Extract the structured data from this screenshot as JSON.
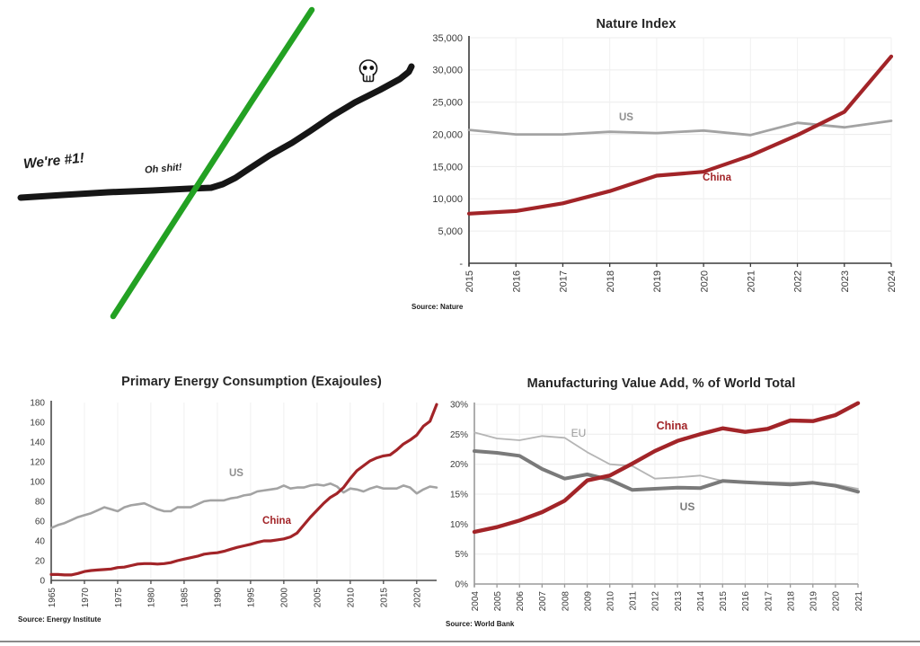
{
  "chart_data": [
    {
      "id": "cartoon",
      "type": "line",
      "style": "hand-drawn cartoon, no axes",
      "annotations": [
        {
          "text": "We're #1!"
        },
        {
          "text": "Oh shit!"
        }
      ],
      "skull_icon": {
        "x": 410,
        "y": 78
      },
      "series": [
        {
          "name": "incumbent-black",
          "color": "#161616",
          "width": 7,
          "points": [
            [
              23,
              220
            ],
            [
              70,
              217
            ],
            [
              120,
              214
            ],
            [
              170,
              212
            ],
            [
              210,
              210
            ],
            [
              235,
              209
            ],
            [
              248,
              205
            ],
            [
              262,
              198
            ],
            [
              277,
              188
            ],
            [
              300,
              173
            ],
            [
              325,
              159
            ],
            [
              345,
              146
            ],
            [
              370,
              129
            ],
            [
              395,
              114
            ],
            [
              423,
              100
            ],
            [
              445,
              88
            ],
            [
              455,
              80
            ],
            [
              458,
              74
            ]
          ]
        },
        {
          "name": "challenger-green",
          "color": "#23a123",
          "width": 6.5,
          "points": [
            [
              126,
              352
            ],
            [
              200,
              237
            ],
            [
              280,
              113
            ],
            [
              347,
              11
            ]
          ]
        }
      ]
    },
    {
      "id": "nature-index",
      "type": "line",
      "title": "Nature Index",
      "source": "Source: Nature",
      "x": [
        2015,
        2016,
        2017,
        2018,
        2019,
        2020,
        2021,
        2022,
        2023,
        2024
      ],
      "xticks": [
        2015,
        2016,
        2017,
        2018,
        2019,
        2020,
        2021,
        2022,
        2023,
        2024
      ],
      "xlim": [
        2015,
        2024
      ],
      "ylim": [
        0,
        35000
      ],
      "ytick_values": [
        0,
        5000,
        10000,
        15000,
        20000,
        25000,
        30000,
        35000
      ],
      "ytick_labels": [
        "-",
        "5,000",
        "10,000",
        "15,000",
        "20,000",
        "25,000",
        "30,000",
        "35,000"
      ],
      "grid": true,
      "legend_position": "inline-labels",
      "series": [
        {
          "name": "US",
          "color": "#a3a3a3",
          "width": 2.8,
          "values": [
            20700,
            20000,
            20000,
            20400,
            20200,
            20600,
            19900,
            21800,
            21100,
            22100
          ]
        },
        {
          "name": "China",
          "color": "#a22428",
          "width": 4.2,
          "values": [
            7700,
            8100,
            9300,
            11200,
            13600,
            14200,
            16700,
            19900,
            23500,
            32100
          ]
        }
      ]
    },
    {
      "id": "energy",
      "type": "line",
      "title": "Primary Energy Consumption (Exajoules)",
      "source": "Source: Energy Institute",
      "x": [
        1965,
        1966,
        1967,
        1968,
        1969,
        1970,
        1971,
        1972,
        1973,
        1974,
        1975,
        1976,
        1977,
        1978,
        1979,
        1980,
        1981,
        1982,
        1983,
        1984,
        1985,
        1986,
        1987,
        1988,
        1989,
        1990,
        1991,
        1992,
        1993,
        1994,
        1995,
        1996,
        1997,
        1998,
        1999,
        2000,
        2001,
        2002,
        2003,
        2004,
        2005,
        2006,
        2007,
        2008,
        2009,
        2010,
        2011,
        2012,
        2013,
        2014,
        2015,
        2016,
        2017,
        2018,
        2019,
        2020,
        2021,
        2022,
        2023
      ],
      "xticks": [
        1965,
        1970,
        1975,
        1980,
        1985,
        1990,
        1995,
        2000,
        2005,
        2010,
        2015,
        2020
      ],
      "xlim": [
        1965,
        2023
      ],
      "ylim": [
        0,
        180
      ],
      "ytick_values": [
        0,
        20,
        40,
        60,
        80,
        100,
        120,
        140,
        160,
        180
      ],
      "ytick_labels": [
        "0",
        "20",
        "40",
        "60",
        "80",
        "100",
        "120",
        "140",
        "160",
        "180"
      ],
      "grid": true,
      "legend_position": "inline-labels",
      "series": [
        {
          "name": "US",
          "color": "#a3a3a3",
          "width": 2.6,
          "values": [
            53,
            56,
            58,
            61,
            64,
            66,
            68,
            71,
            74,
            72,
            70,
            74,
            76,
            77,
            78,
            75,
            72,
            70,
            70,
            74,
            74,
            74,
            77,
            80,
            81,
            81,
            81,
            83,
            84,
            86,
            87,
            90,
            91,
            92,
            93,
            96,
            93,
            94,
            94,
            96,
            97,
            96,
            98,
            95,
            89,
            93,
            92,
            90,
            93,
            95,
            93,
            93,
            93,
            96,
            94,
            88,
            92,
            95,
            94
          ]
        },
        {
          "name": "China",
          "color": "#a22428",
          "width": 3.2,
          "values": [
            6,
            6,
            5.5,
            5.5,
            7,
            9,
            10,
            10.5,
            11,
            11.5,
            13,
            13.5,
            15,
            16.5,
            17,
            17,
            16.5,
            17,
            18,
            20,
            21.5,
            23,
            24.5,
            26.5,
            27.5,
            28,
            29.5,
            31.5,
            33.5,
            35,
            36.5,
            38.5,
            40,
            40,
            41,
            42,
            44,
            48,
            56,
            64,
            71,
            78,
            84,
            88,
            94,
            103,
            111,
            116,
            121,
            124,
            126,
            127,
            132,
            138,
            142,
            147,
            156,
            161,
            178
          ]
        }
      ]
    },
    {
      "id": "manufacturing",
      "type": "line",
      "title": "Manufacturing Value Add, % of World Total",
      "source": "Source: World Bank",
      "x": [
        2004,
        2005,
        2006,
        2007,
        2008,
        2009,
        2010,
        2011,
        2012,
        2013,
        2014,
        2015,
        2016,
        2017,
        2018,
        2019,
        2020,
        2021
      ],
      "xticks": [
        2004,
        2005,
        2006,
        2007,
        2008,
        2009,
        2010,
        2011,
        2012,
        2013,
        2014,
        2015,
        2016,
        2017,
        2018,
        2019,
        2020,
        2021
      ],
      "xlim": [
        2004,
        2021
      ],
      "ylim": [
        0,
        30
      ],
      "ytick_values": [
        0,
        5,
        10,
        15,
        20,
        25,
        30
      ],
      "ytick_labels": [
        "0%",
        "5%",
        "10%",
        "15%",
        "20%",
        "25%",
        "30%"
      ],
      "grid": true,
      "legend_position": "inline-labels",
      "series": [
        {
          "name": "EU",
          "color": "#b5b5b5",
          "width": 1.8,
          "values": [
            25.3,
            24.3,
            24.0,
            24.7,
            24.4,
            22.0,
            20.0,
            19.7,
            17.6,
            17.8,
            18.1,
            17.2,
            17.1,
            17.0,
            16.9,
            17.0,
            16.6,
            15.9
          ]
        },
        {
          "name": "US",
          "color": "#7a7a7a",
          "width": 4,
          "values": [
            22.2,
            21.9,
            21.4,
            19.2,
            17.6,
            18.3,
            17.4,
            15.7,
            15.9,
            16.1,
            16.0,
            17.2,
            17.0,
            16.8,
            16.6,
            16.9,
            16.4,
            15.4
          ]
        },
        {
          "name": "China",
          "color": "#a22428",
          "width": 4.4,
          "values": [
            8.7,
            9.5,
            10.6,
            12.0,
            13.9,
            17.3,
            18.1,
            20.1,
            22.2,
            23.9,
            25.0,
            26.0,
            25.4,
            25.9,
            27.3,
            27.2,
            28.2,
            30.2
          ]
        }
      ]
    }
  ],
  "page": {
    "bottom_bar_color": "#8a8a8a"
  }
}
